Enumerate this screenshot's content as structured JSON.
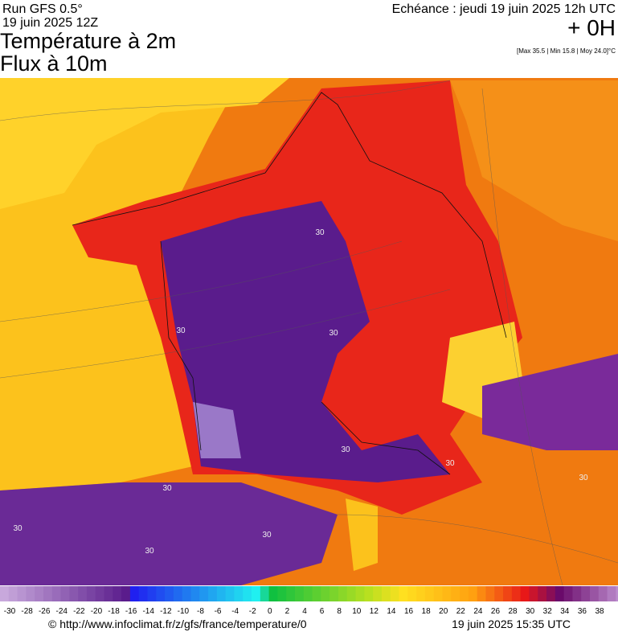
{
  "header": {
    "run": "Run GFS 0.5°",
    "date": "19 juin 2025 12Z",
    "title": "Température à 2m",
    "subtitle": "Flux à 10m",
    "echeance": "Echéance : jeudi 19 juin 2025 12h UTC",
    "offset": "+ 0H",
    "stats": "[Max 35.5 | Min 15.8 | Moy 24.0]°C"
  },
  "map": {
    "contour_labels": [
      30,
      30,
      30,
      30,
      30,
      30,
      30,
      30,
      30,
      30
    ]
  },
  "colorbar": {
    "ticks": [
      -30,
      -28,
      -26,
      -24,
      -22,
      -20,
      -18,
      -16,
      -14,
      -12,
      -10,
      -8,
      -6,
      -4,
      -2,
      0,
      2,
      4,
      6,
      8,
      10,
      12,
      14,
      16,
      18,
      20,
      22,
      24,
      26,
      28,
      30,
      32,
      34,
      36,
      38
    ]
  },
  "footer": {
    "source": "© http://www.infoclimat.fr/z/gfs/france/temperature/0",
    "generated": "19 juin 2025 15:35 UTC"
  }
}
